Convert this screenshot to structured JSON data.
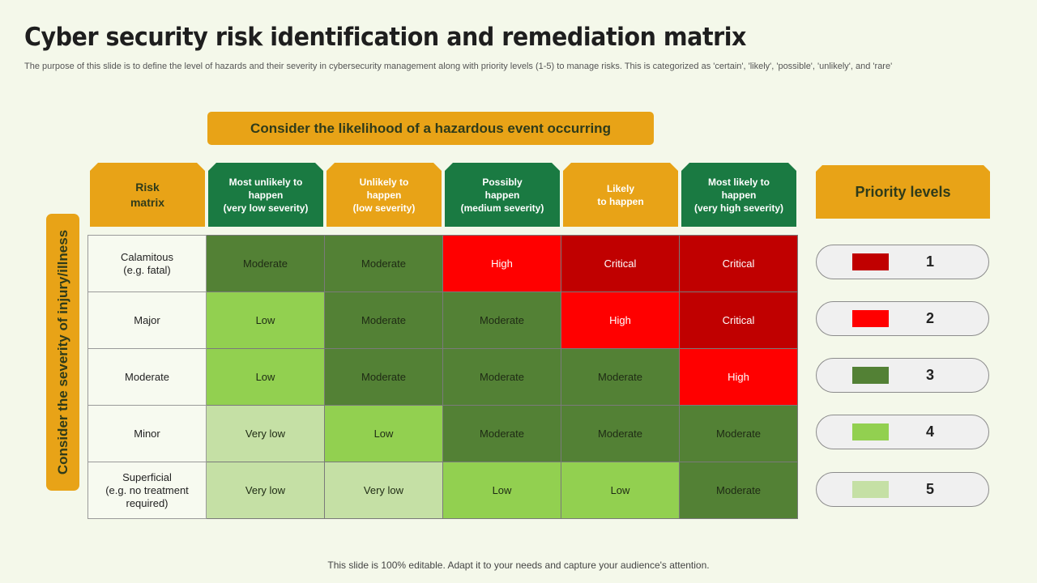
{
  "title": "Cyber security risk identification and remediation matrix",
  "subtitle": "The purpose of this slide is to define the level of hazards and their severity in cybersecurity management along with priority levels (1-5) to manage risks. This is categorized as 'certain', 'likely', 'possible', 'unlikely', and 'rare'",
  "likelihood_banner": "Consider the likelihood of a hazardous event occurring",
  "severity_label": "Consider the severity of injury/illness",
  "corner_label": "Risk\nmatrix",
  "columns": [
    {
      "label": "Most  unlikely to\nhappen\n(very low severity)",
      "color": "#1a7a42"
    },
    {
      "label": "Unlikely to\nhappen\n(low severity)",
      "color": "#e8a317"
    },
    {
      "label": "Possibly\nhappen\n(medium severity)",
      "color": "#1a7a42"
    },
    {
      "label": "Likely\nto happen",
      "color": "#e8a317"
    },
    {
      "label": "Most likely to\nhappen\n(very high severity)",
      "color": "#1a7a42"
    }
  ],
  "rows": [
    {
      "label": "Calamitous\n(e.g. fatal)",
      "cells": [
        "Moderate",
        "Moderate",
        "High",
        "Critical",
        "Critical"
      ]
    },
    {
      "label": "Major",
      "cells": [
        "Low",
        "Moderate",
        "Moderate",
        "High",
        "Critical"
      ]
    },
    {
      "label": "Moderate",
      "cells": [
        "Low",
        "Moderate",
        "Moderate",
        "Moderate",
        "High"
      ]
    },
    {
      "label": "Minor",
      "cells": [
        "Very low",
        "Low",
        "Moderate",
        "Moderate",
        "Moderate"
      ]
    },
    {
      "label": "Superficial\n(e.g. no treatment\nrequired)",
      "cells": [
        "Very low",
        "Very low",
        "Low",
        "Low",
        "Moderate"
      ]
    }
  ],
  "level_colors": {
    "Critical": "#c00000",
    "High": "#ff0000",
    "Moderate": "#538135",
    "Low": "#92d050",
    "Very low": "#c5e0a5"
  },
  "priority": {
    "title": "Priority levels",
    "levels": [
      {
        "number": "1",
        "color": "#c00000"
      },
      {
        "number": "2",
        "color": "#ff0000"
      },
      {
        "number": "3",
        "color": "#538135"
      },
      {
        "number": "4",
        "color": "#92d050"
      },
      {
        "number": "5",
        "color": "#c5e0a5"
      }
    ]
  },
  "footer": "This slide is 100% editable. Adapt it to your needs and capture your audience's attention."
}
